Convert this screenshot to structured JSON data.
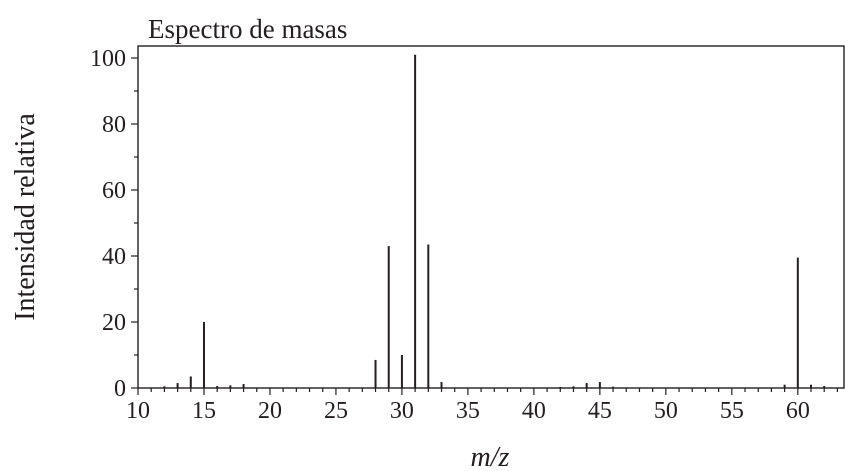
{
  "chart_data": {
    "type": "bar",
    "title": "Espectro de masas",
    "xlabel": "m/z",
    "ylabel": "Intensidad relativa",
    "xlim": [
      10,
      63.5
    ],
    "ylim": [
      0,
      105
    ],
    "xticks": [
      10,
      15,
      20,
      25,
      30,
      35,
      40,
      45,
      50,
      55,
      60
    ],
    "yticks": [
      0,
      20,
      40,
      60,
      80,
      100
    ],
    "grid": false,
    "x": [
      12,
      13,
      14,
      15,
      16,
      17,
      18,
      28,
      29,
      30,
      31,
      32,
      33,
      42,
      43,
      44,
      45,
      46,
      59,
      60,
      61,
      62
    ],
    "values": [
      0.5,
      1.5,
      3.5,
      20,
      0.6,
      0.8,
      1.2,
      8.5,
      43,
      10,
      101,
      43.5,
      1.8,
      0.3,
      0.5,
      1.5,
      1.8,
      0.4,
      1.0,
      39.5,
      1.0,
      0.6
    ]
  }
}
